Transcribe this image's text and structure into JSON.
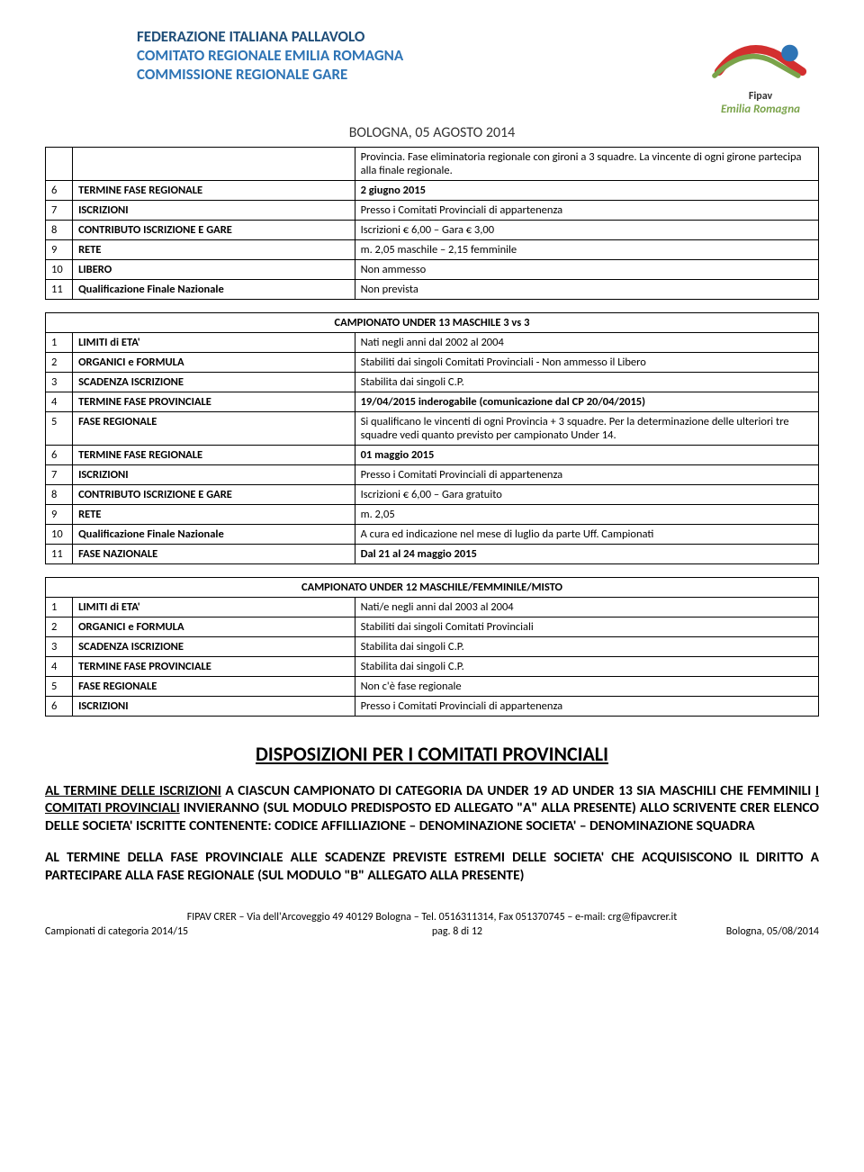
{
  "header": {
    "org1": "FEDERAZIONE ITALIANA PALLAVOLO",
    "org2": "COMITATO REGIONALE EMILIA ROMAGNA",
    "org3": "COMMISSIONE REGIONALE GARE",
    "date": "BOLOGNA, 05 AGOSTO 2014",
    "right_brand": "Fipav",
    "right_sub": "Emilia Romagna"
  },
  "table1": {
    "rows": [
      {
        "idx": "",
        "label": "",
        "val": "Provincia. Fase eliminatoria regionale con gironi a 3 squadre. La vincente di ogni girone partecipa alla finale regionale."
      },
      {
        "idx": "6",
        "label": "TERMINE FASE REGIONALE",
        "val": "2 giugno 2015",
        "valBold": true
      },
      {
        "idx": "7",
        "label": "ISCRIZIONI",
        "val": "Presso i Comitati Provinciali di appartenenza"
      },
      {
        "idx": "8",
        "label": "CONTRIBUTO ISCRIZIONE E GARE",
        "val": "Iscrizioni € 6,00 – Gara € 3,00"
      },
      {
        "idx": "9",
        "label": "RETE",
        "val": "m. 2,05 maschile – 2,15 femminile"
      },
      {
        "idx": "10",
        "label": "LIBERO",
        "val": "Non ammesso"
      },
      {
        "idx": "11",
        "label": "Qualificazione Finale Nazionale",
        "val": "Non prevista"
      }
    ]
  },
  "table2": {
    "title": "CAMPIONATO UNDER 13 MASCHILE 3 vs 3",
    "rows": [
      {
        "idx": "1",
        "label": "LIMITI di ETA'",
        "val": "Nati negli anni dal  2002 al 2004"
      },
      {
        "idx": "2",
        "label": "ORGANICI e FORMULA",
        "val": "Stabiliti dai singoli Comitati Provinciali - Non ammesso il Libero"
      },
      {
        "idx": "3",
        "label": "SCADENZA ISCRIZIONE",
        "val": "Stabilita dai singoli C.P."
      },
      {
        "idx": "4",
        "label": "TERMINE FASE PROVINCIALE",
        "val": "19/04/2015 inderogabile (comunicazione  dal CP 20/04/2015)",
        "valBold": true
      },
      {
        "idx": "5",
        "label": "FASE REGIONALE",
        "val": "Si qualificano le vincenti di ogni Provincia + 3 squadre. Per la determinazione delle ulteriori tre squadre vedi quanto previsto per campionato Under 14."
      },
      {
        "idx": "6",
        "label": "TERMINE FASE REGIONALE",
        "val": "01 maggio 2015",
        "valBold": true
      },
      {
        "idx": "7",
        "label": "ISCRIZIONI",
        "val": "Presso i Comitati Provinciali di appartenenza"
      },
      {
        "idx": "8",
        "label": "CONTRIBUTO ISCRIZIONE E GARE",
        "val": "Iscrizioni € 6,00 – Gara gratuito"
      },
      {
        "idx": "9",
        "label": "RETE",
        "val": "m. 2,05"
      },
      {
        "idx": "10",
        "label": "Qualificazione Finale Nazionale",
        "val": "A cura ed indicazione nel mese di luglio da parte  Uff. Campionati"
      },
      {
        "idx": "11",
        "label": "FASE NAZIONALE",
        "val": "Dal 21 al 24 maggio 2015",
        "valBold": true
      }
    ]
  },
  "table3": {
    "title": "CAMPIONATO UNDER 12 MASCHILE/FEMMINILE/MISTO",
    "rows": [
      {
        "idx": "1",
        "label": "LIMITI di ETA'",
        "val": "Nati/e negli anni dal  2003 al 2004"
      },
      {
        "idx": "2",
        "label": "ORGANICI e FORMULA",
        "val": "Stabiliti dai singoli Comitati Provinciali"
      },
      {
        "idx": "3",
        "label": "SCADENZA ISCRIZIONE",
        "val": "Stabilita dai singoli C.P."
      },
      {
        "idx": "4",
        "label": "TERMINE FASE PROVINCIALE",
        "val": "Stabilita dai singoli C.P."
      },
      {
        "idx": "5",
        "label": "FASE REGIONALE",
        "val": "Non c'è fase regionale"
      },
      {
        "idx": "6",
        "label": "ISCRIZIONI",
        "val": "Presso i Comitati Provinciali di appartenenza"
      }
    ]
  },
  "section": {
    "title": "DISPOSIZIONI PER I COMITATI PROVINCIALI",
    "para1_pre": "AL TERMINE DELLE ISCRIZIONI",
    "para1_mid": " A CIASCUN CAMPIONATO DI CATEGORIA DA UNDER 19 AD UNDER 13 SIA MASCHILI CHE FEMMINILI ",
    "para1_u2": "I COMITATI PROVINCIALI",
    "para1_post": " INVIERANNO (SUL MODULO PREDISPOSTO ED ALLEGATO \"A\" ALLA PRESENTE) ALLO SCRIVENTE CRER ELENCO DELLE SOCIETA' ISCRITTE CONTENENTE:  CODICE AFFILLIAZIONE – DENOMINAZIONE SOCIETA' – DENOMINAZIONE SQUADRA",
    "para2": "AL TERMINE DELLA FASE PROVINCIALE ALLE SCADENZE PREVISTE ESTREMI DELLE SOCIETA' CHE ACQUISISCONO IL DIRITTO A PARTECIPARE ALLA FASE REGIONALE (SUL MODULO \"B\" ALLEGATO ALLA PRESENTE)"
  },
  "footer": {
    "line1": "FIPAV CRER – Via dell'Arcoveggio 49 40129 Bologna – Tel. 0516311314,  Fax 051370745 – e-mail: crg@fipavcrer.it",
    "left": "Campionati di categoria 2014/15",
    "center": "pag. 8 di 12",
    "right": "Bologna, 05/08/2014"
  },
  "colors": {
    "header_dark": "#1f4e79",
    "header_light": "#2e74b5",
    "green": "#7aa34a",
    "red": "#d32f2f"
  }
}
